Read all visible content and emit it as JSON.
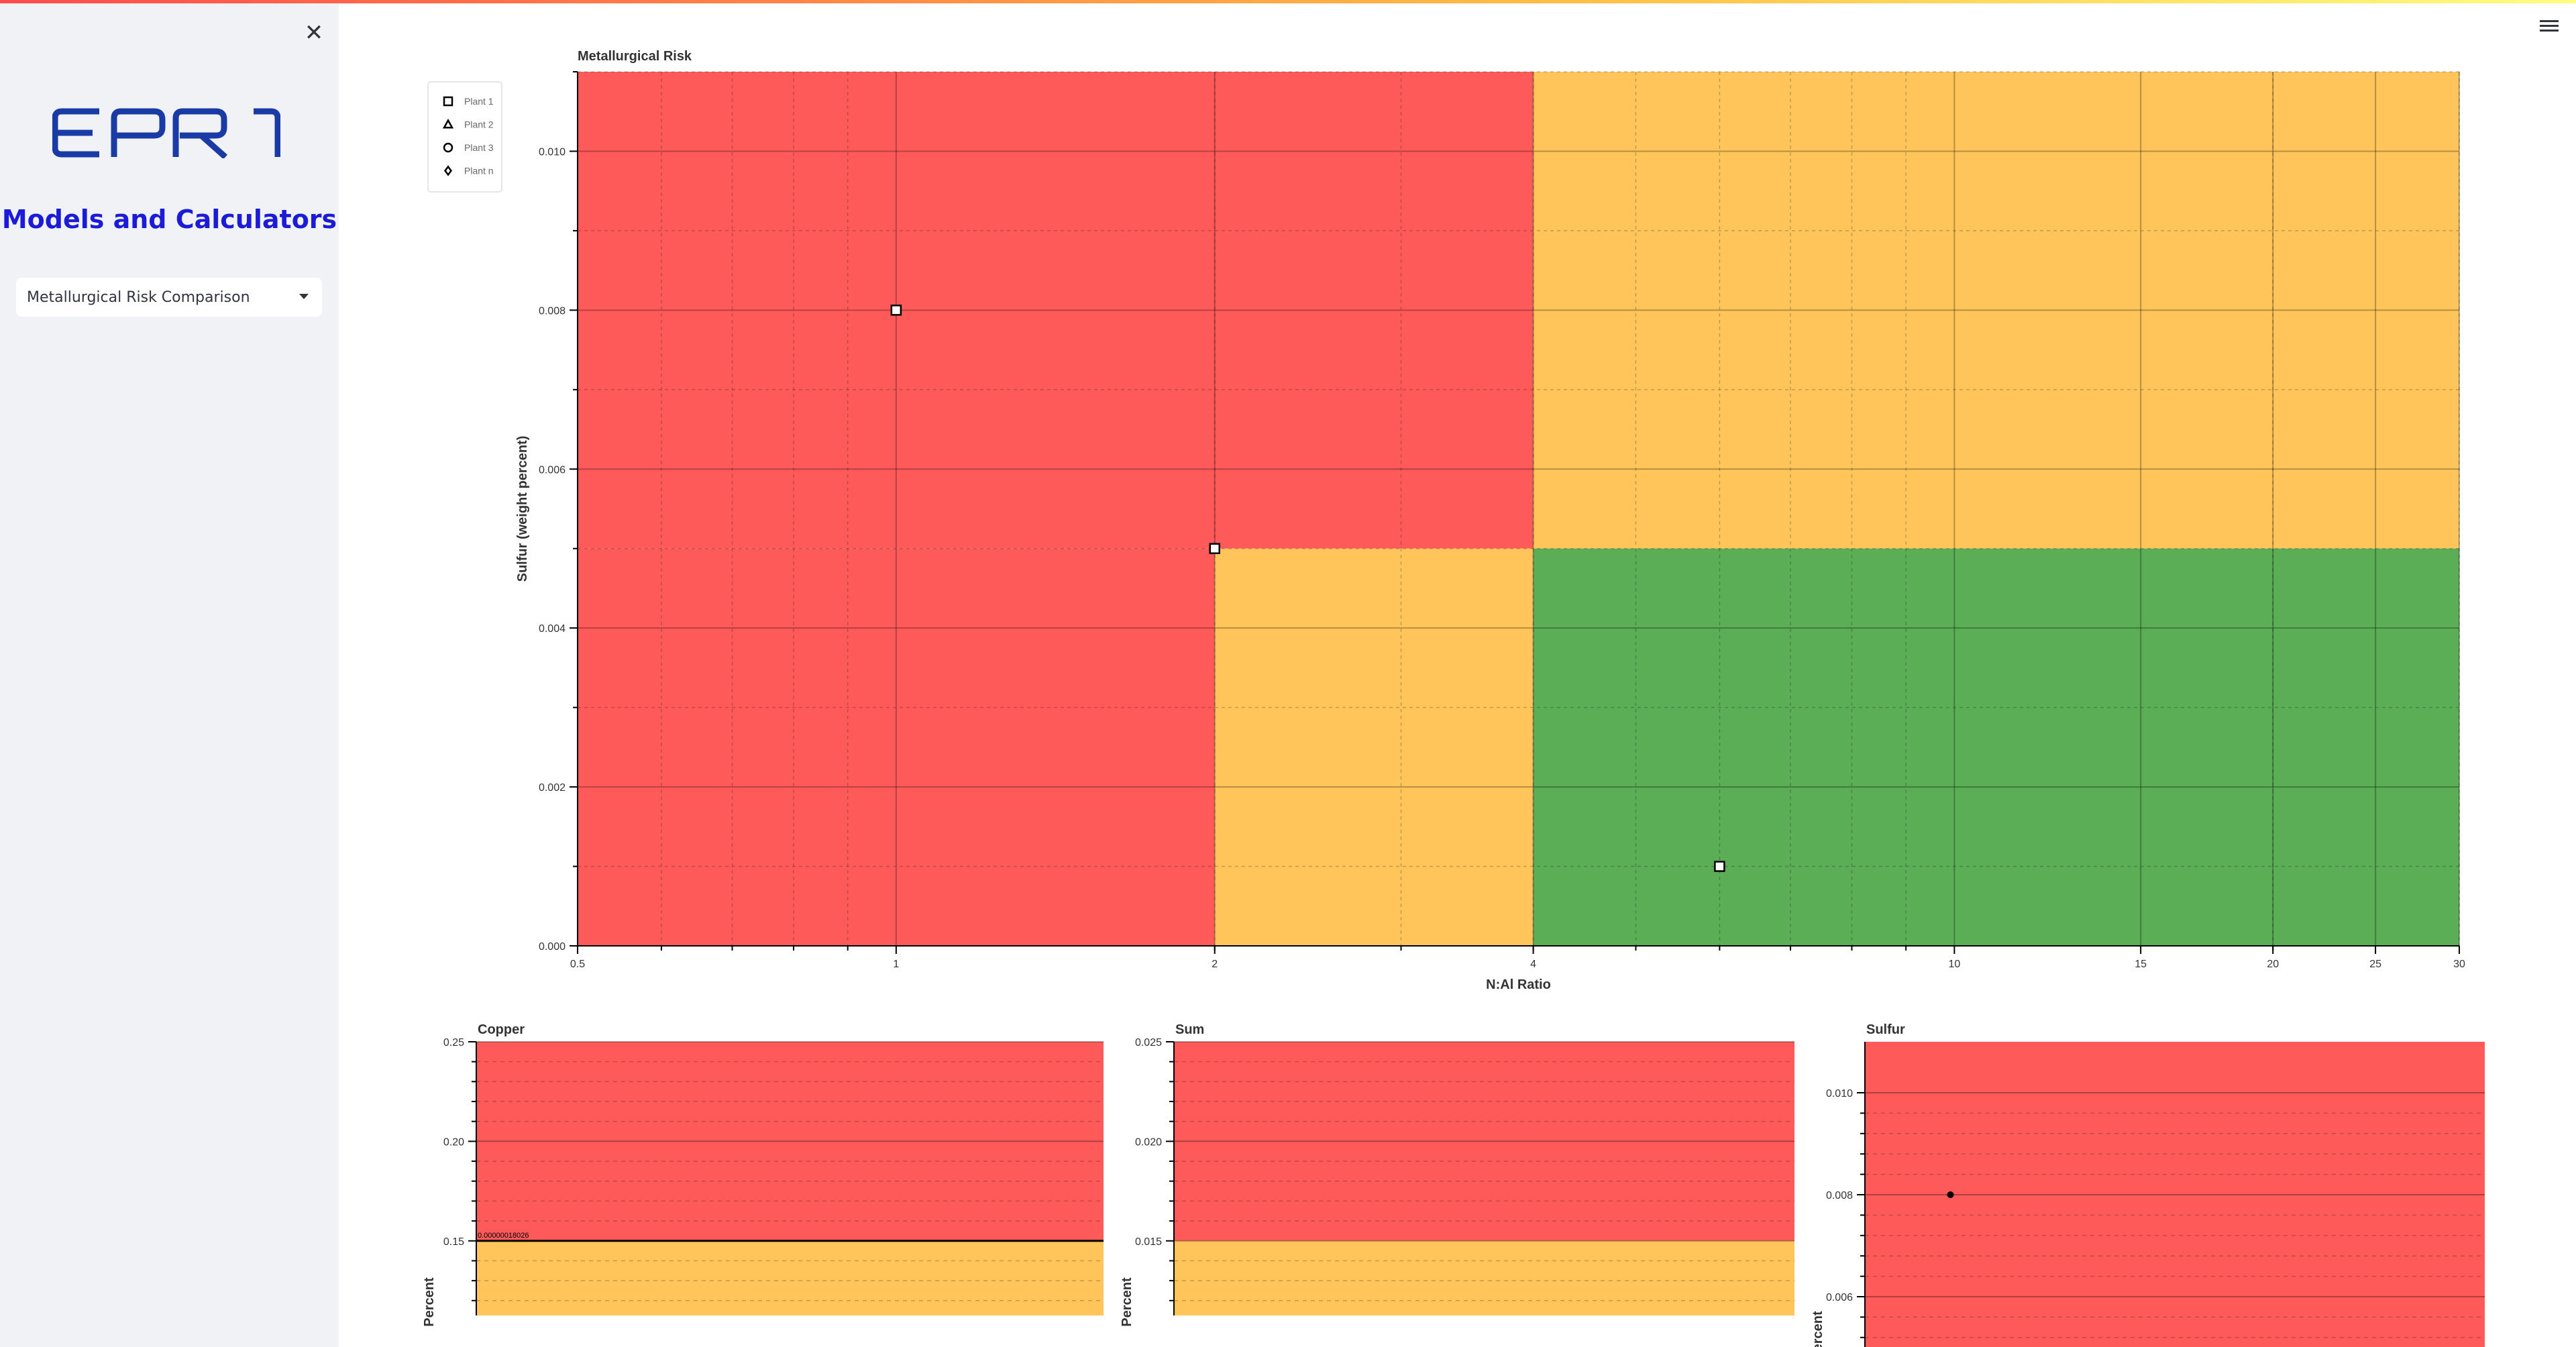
{
  "app": {
    "close_icon": "close-icon",
    "menu_icon": "hamburger-menu-icon",
    "logo_text": "EPRI",
    "sidebar_title": "Models and Calculators",
    "select_value": "Metallurgical Risk Comparison",
    "colors": {
      "red": "#ff5a5a",
      "orange": "#ffc55a",
      "green": "#5bad56",
      "brand_blue": "#1c1cd8",
      "logo_blue": "#1a3aa6"
    }
  },
  "chart_data": [
    {
      "type": "scatter",
      "title": "Metallurgical Risk",
      "xlabel": "N:Al Ratio",
      "ylabel": "Sulfur (weight percent)",
      "x_scale": "log",
      "xlim": [
        0.5,
        30
      ],
      "ylim": [
        0,
        0.011
      ],
      "x_ticks": [
        0.5,
        1,
        2,
        4,
        10,
        15,
        20,
        25,
        30
      ],
      "y_ticks": [
        0,
        0.002,
        0.004,
        0.006,
        0.008,
        0.01
      ],
      "y_tick_labels": [
        "0.000",
        "0.002",
        "0.004",
        "0.006",
        "0.008",
        "0.010"
      ],
      "regions": [
        {
          "risk": "high",
          "color": "#ff5a5a",
          "x": [
            0.5,
            4
          ],
          "y": [
            0.005,
            0.011
          ]
        },
        {
          "risk": "high",
          "color": "#ff5a5a",
          "x": [
            0.5,
            2
          ],
          "y": [
            0,
            0.005
          ]
        },
        {
          "risk": "medium",
          "color": "#ffc55a",
          "x": [
            4,
            30
          ],
          "y": [
            0.005,
            0.011
          ]
        },
        {
          "risk": "medium",
          "color": "#ffc55a",
          "x": [
            2,
            4
          ],
          "y": [
            0,
            0.005
          ]
        },
        {
          "risk": "low",
          "color": "#5bad56",
          "x": [
            4,
            30
          ],
          "y": [
            0,
            0.005
          ]
        }
      ],
      "legend": [
        {
          "name": "Plant 1",
          "marker": "square"
        },
        {
          "name": "Plant 2",
          "marker": "triangle"
        },
        {
          "name": "Plant 3",
          "marker": "circle"
        },
        {
          "name": "Plant n",
          "marker": "diamond"
        }
      ],
      "legend_position": "top-left",
      "points": [
        {
          "x": 1,
          "y": 0.008,
          "marker": "square"
        },
        {
          "x": 2,
          "y": 0.005,
          "marker": "square"
        },
        {
          "x": 6,
          "y": 0.001,
          "marker": "square"
        }
      ],
      "grid": true
    },
    {
      "type": "bar",
      "title": "Copper",
      "ylabel": "Percent",
      "y_ticks": [
        0.15,
        0.2,
        0.25
      ],
      "y_tick_labels": [
        "0.15",
        "0.20",
        "0.25"
      ],
      "visible_ylim": [
        0.126,
        0.25
      ],
      "regions": [
        {
          "color": "#ff5a5a",
          "y": [
            0.15,
            0.25
          ]
        },
        {
          "color": "#ffc55a",
          "y": [
            0,
            0.15
          ]
        }
      ],
      "threshold_line": 0.15,
      "annotation": "0.00000018026",
      "grid": true
    },
    {
      "type": "bar",
      "title": "Sum",
      "ylabel": "Percent",
      "y_ticks": [
        0.015,
        0.02,
        0.025
      ],
      "y_tick_labels": [
        "0.015",
        "0.020",
        "0.025"
      ],
      "visible_ylim": [
        0.0126,
        0.025
      ],
      "regions": [
        {
          "color": "#ff5a5a",
          "y": [
            0.015,
            0.025
          ]
        },
        {
          "color": "#ffc55a",
          "y": [
            0,
            0.015
          ]
        }
      ],
      "grid": true
    },
    {
      "type": "scatter",
      "title": "Sulfur",
      "ylabel": "Percent",
      "y_ticks": [
        0.006,
        0.008,
        0.01
      ],
      "y_tick_labels": [
        "0.006",
        "0.008",
        "0.010"
      ],
      "visible_ylim": [
        0.0055,
        0.011
      ],
      "regions": [
        {
          "color": "#ff5a5a",
          "y": [
            0,
            0.011
          ]
        }
      ],
      "points": [
        {
          "y": 0.008
        }
      ],
      "grid": true
    }
  ]
}
